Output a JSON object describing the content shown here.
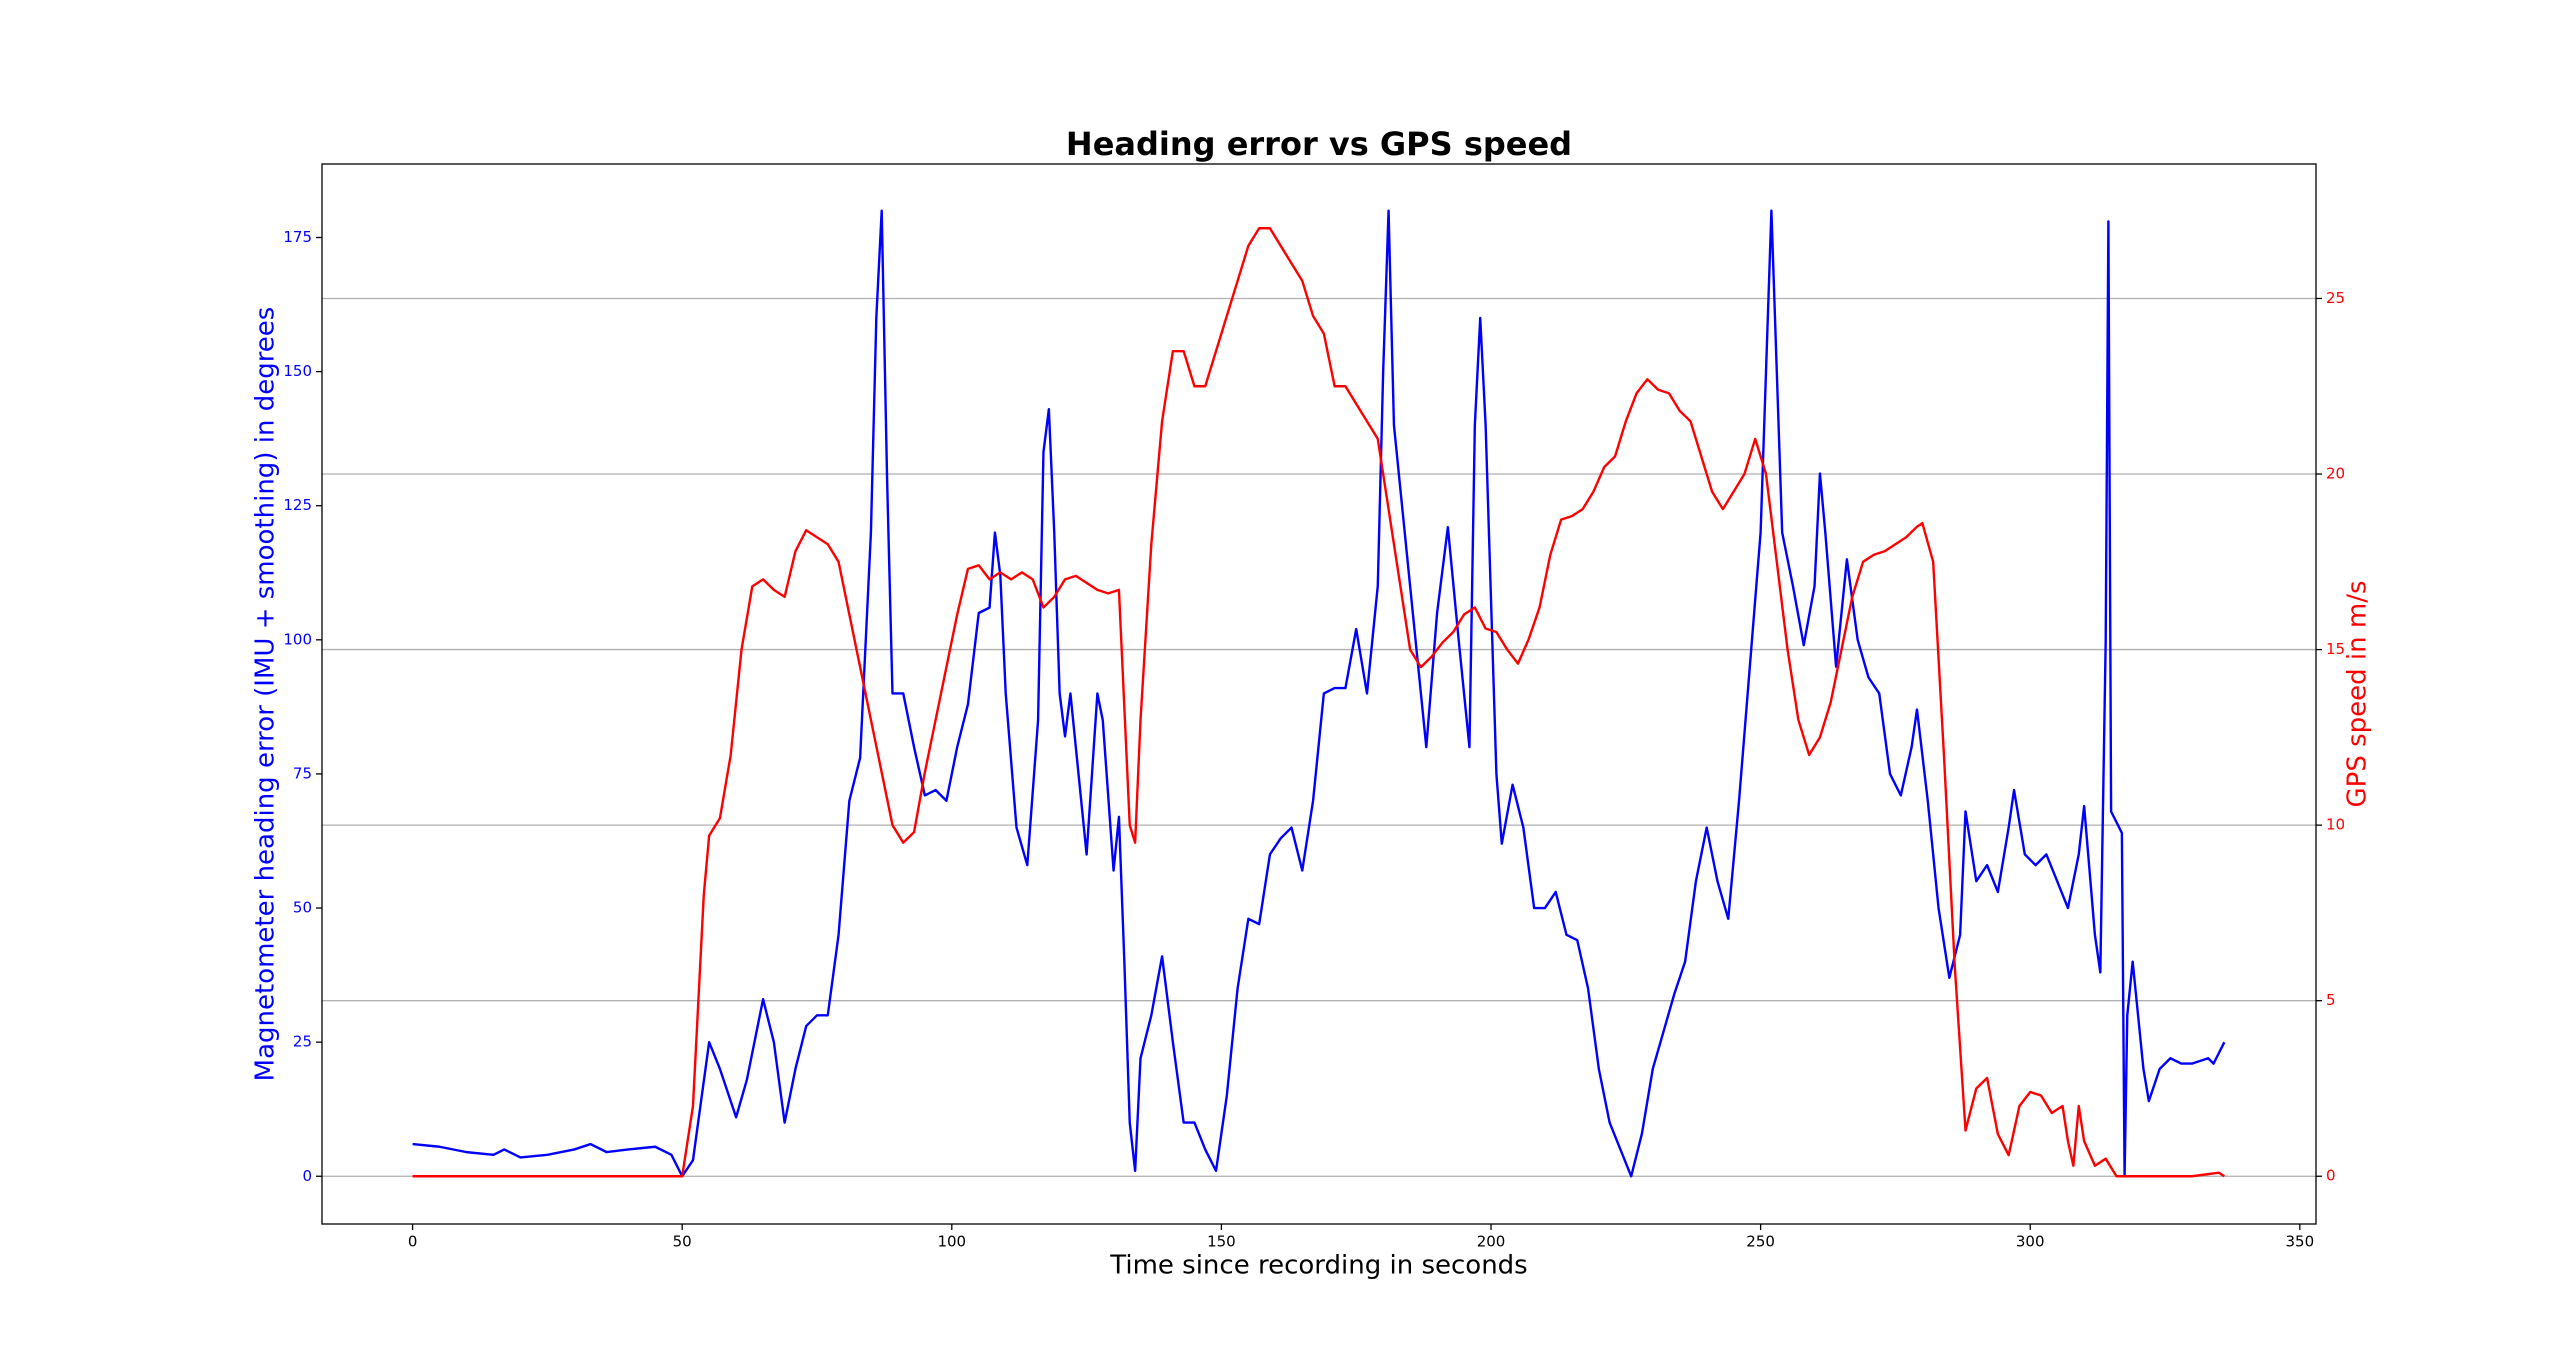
{
  "chart_data": {
    "type": "line",
    "title": "Heading error vs GPS speed",
    "x_label": "Time since recording in seconds",
    "y_label": "Magnetometer heading error (IMU + smoothing) in degrees",
    "y2_label": "GPS speed in m/s",
    "y_color": "#0000ff",
    "y2_color": "#ff0000",
    "xlim": [
      -16.8,
      353
    ],
    "xticks": [
      0,
      50,
      100,
      150,
      200,
      250,
      300,
      350
    ],
    "ylim": [
      -8.9,
      188.7
    ],
    "yticks": [
      0,
      25,
      50,
      75,
      100,
      125,
      150,
      175
    ],
    "y2lim": [
      -1.36,
      28.83
    ],
    "y2ticks": [
      0,
      5,
      10,
      15,
      20,
      25
    ],
    "grid": "y2",
    "series": [
      {
        "color": "#0000ff",
        "axis": "y",
        "x": [
          0,
          5,
          10,
          15,
          17,
          20,
          25,
          30,
          33,
          36,
          40,
          45,
          48,
          50,
          52,
          55,
          57,
          60,
          62,
          65,
          67,
          69,
          71,
          73,
          75,
          77,
          79,
          81,
          83,
          85,
          86,
          87,
          88,
          89,
          91,
          93,
          95,
          97,
          99,
          101,
          103,
          105,
          107,
          108,
          109,
          110,
          112,
          114,
          116,
          117,
          118,
          119,
          120,
          121,
          122,
          123,
          125,
          127,
          128,
          130,
          131,
          132,
          133,
          134,
          135,
          137,
          139,
          141,
          143,
          145,
          147,
          149,
          151,
          153,
          155,
          157,
          159,
          161,
          163,
          165,
          167,
          169,
          171,
          173,
          175,
          177,
          179,
          180,
          181,
          182,
          184,
          186,
          188,
          190,
          192,
          194,
          196,
          197,
          198,
          199,
          201,
          202,
          204,
          206,
          208,
          210,
          212,
          214,
          216,
          218,
          220,
          222,
          224,
          226,
          228,
          230,
          232,
          234,
          236,
          238,
          240,
          242,
          244,
          246,
          248,
          250,
          251,
          252,
          253,
          254,
          256,
          258,
          260,
          261,
          262,
          264,
          266,
          268,
          270,
          272,
          274,
          276,
          278,
          279,
          281,
          283,
          285,
          287,
          288,
          290,
          292,
          294,
          296,
          297,
          299,
          301,
          303,
          305,
          307,
          309,
          310,
          312,
          313,
          314,
          314.5,
          315,
          317,
          317.5,
          318,
          319,
          321,
          322,
          324,
          326,
          328,
          330,
          333,
          334,
          336
        ],
        "values": [
          6,
          5.5,
          4.5,
          4,
          5,
          3.5,
          4,
          5,
          6,
          4.5,
          5,
          5.5,
          4,
          0,
          3,
          25,
          20,
          11,
          18,
          33,
          25,
          10,
          20,
          28,
          30,
          30,
          45,
          70,
          78,
          120,
          160,
          180,
          130,
          90,
          90,
          80,
          71,
          72,
          70,
          80,
          88,
          105,
          106,
          120,
          112,
          90,
          65,
          58,
          85,
          135,
          143,
          120,
          90,
          82,
          90,
          80,
          60,
          90,
          85,
          57,
          67,
          40,
          10,
          1,
          22,
          30,
          41,
          25,
          10,
          10,
          5,
          1,
          15,
          35,
          48,
          47,
          60,
          63,
          65,
          57,
          70,
          90,
          91,
          91,
          102,
          90,
          110,
          150,
          180,
          140,
          120,
          100,
          80,
          105,
          121,
          100,
          80,
          140,
          160,
          140,
          75,
          62,
          73,
          65,
          50,
          50,
          53,
          45,
          44,
          35,
          20,
          10,
          5,
          0,
          8,
          20,
          27,
          34,
          40,
          55,
          65,
          55,
          48,
          70,
          95,
          120,
          150,
          180,
          150,
          120,
          110,
          99,
          110,
          131,
          120,
          95,
          115,
          100,
          93,
          90,
          75,
          71,
          80,
          87,
          70,
          50,
          37,
          45,
          68,
          55,
          58,
          53,
          65,
          72,
          60,
          58,
          60,
          55,
          50,
          60,
          69,
          45,
          38,
          100,
          178,
          68,
          64,
          0,
          30,
          40,
          20,
          14,
          20,
          22,
          21,
          21,
          22,
          21,
          25
        ]
      },
      {
        "color": "#ff0000",
        "axis": "y2",
        "x": [
          0,
          10,
          20,
          30,
          40,
          50,
          52,
          53,
          54,
          55,
          57,
          59,
          61,
          63,
          65,
          67,
          69,
          71,
          73,
          75,
          77,
          79,
          81,
          83,
          85,
          87,
          89,
          91,
          93,
          95,
          97,
          99,
          101,
          103,
          105,
          107,
          109,
          111,
          113,
          115,
          117,
          119,
          121,
          123,
          125,
          127,
          129,
          131,
          133,
          134,
          135,
          137,
          139,
          141,
          143,
          145,
          147,
          149,
          151,
          153,
          155,
          157,
          159,
          161,
          163,
          165,
          167,
          169,
          171,
          173,
          175,
          177,
          179,
          181,
          183,
          185,
          187,
          189,
          191,
          193,
          195,
          197,
          199,
          201,
          203,
          205,
          207,
          209,
          211,
          213,
          215,
          217,
          219,
          221,
          223,
          225,
          227,
          229,
          231,
          233,
          235,
          237,
          239,
          241,
          243,
          245,
          247,
          249,
          251,
          253,
          255,
          257,
          259,
          261,
          263,
          265,
          267,
          269,
          271,
          273,
          275,
          277,
          279,
          280,
          282,
          284,
          286,
          288,
          290,
          292,
          294,
          296,
          298,
          300,
          302,
          304,
          306,
          307,
          308,
          309,
          310,
          312,
          314,
          316,
          320,
          330,
          335,
          336
        ],
        "values": [
          0,
          0,
          0,
          0,
          0,
          0,
          2,
          5,
          8,
          9.7,
          10.2,
          12,
          15,
          16.8,
          17,
          16.7,
          16.5,
          17.8,
          18.4,
          18.2,
          18,
          17.5,
          16,
          14.5,
          13,
          11.5,
          10,
          9.5,
          9.8,
          11.5,
          13,
          14.5,
          16,
          17.3,
          17.4,
          17,
          17.2,
          17,
          17.2,
          17,
          16.2,
          16.5,
          17,
          17.1,
          16.9,
          16.7,
          16.6,
          16.7,
          10,
          9.5,
          13,
          18,
          21.5,
          23.5,
          23.5,
          22.5,
          22.5,
          23.5,
          24.5,
          25.5,
          26.5,
          27,
          27,
          26.5,
          26,
          25.5,
          24.5,
          24,
          22.5,
          22.5,
          22,
          21.5,
          21,
          19,
          17,
          15,
          14.5,
          14.8,
          15.2,
          15.5,
          16,
          16.2,
          15.6,
          15.5,
          15,
          14.6,
          15.3,
          16.2,
          17.7,
          18.7,
          18.8,
          19,
          19.5,
          20.2,
          20.5,
          21.5,
          22.3,
          22.7,
          22.4,
          22.3,
          21.8,
          21.5,
          20.5,
          19.5,
          19,
          19.5,
          20,
          21,
          20,
          17.5,
          15,
          13,
          12,
          12.5,
          13.5,
          15,
          16.5,
          17.5,
          17.7,
          17.8,
          18,
          18.2,
          18.5,
          18.6,
          17.5,
          12,
          6,
          1.3,
          2.5,
          2.8,
          1.2,
          0.6,
          2,
          2.4,
          2.3,
          1.8,
          2,
          1,
          0.3,
          2,
          1,
          0.3,
          0.5,
          0,
          0,
          0,
          0.1,
          0
        ]
      }
    ]
  }
}
